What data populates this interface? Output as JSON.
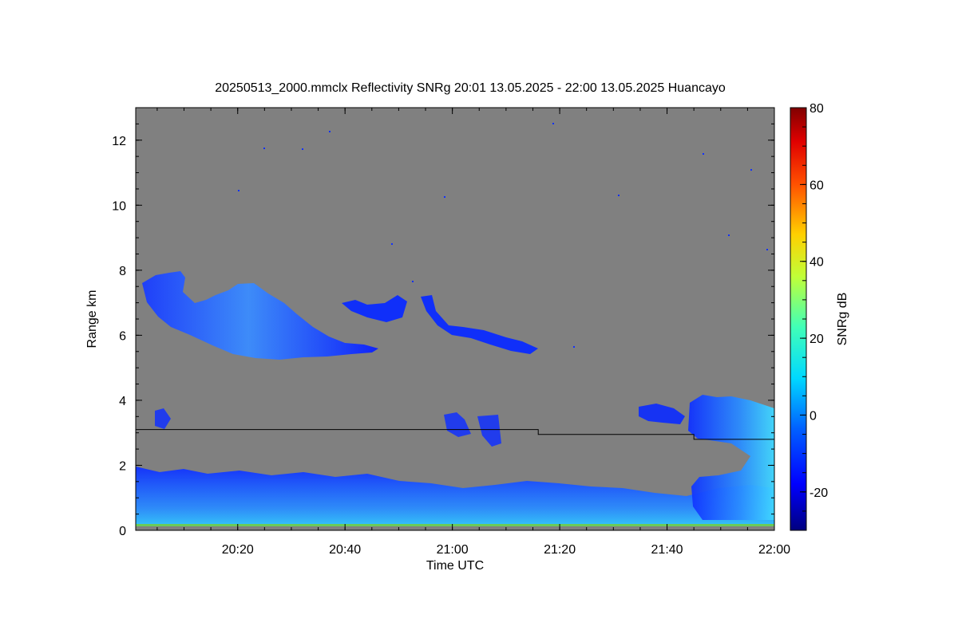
{
  "chart_data": {
    "type": "heatmap",
    "title": "20250513_2000.mmclx Reflectivity SNRg   20:01 13.05.2025 - 22:00 13.05.2025 Huancayo",
    "xlabel": "Time UTC",
    "ylabel": "Range km",
    "xlim": [
      "20:01",
      "22:00"
    ],
    "ylim": [
      0,
      13
    ],
    "x_ticks": [
      "20:20",
      "20:40",
      "21:00",
      "21:20",
      "21:40",
      "22:00"
    ],
    "y_ticks": [
      "0",
      "2",
      "4",
      "6",
      "8",
      "10",
      "12"
    ],
    "background_color": "#808080",
    "colorbar": {
      "label": "SNRg dB",
      "range": [
        -30,
        80
      ],
      "ticks": [
        "-20",
        "0",
        "20",
        "40",
        "60",
        "80"
      ],
      "colormap": "jet"
    },
    "reference_line": [
      {
        "from": "20:01",
        "to": "21:16",
        "range_km": 3.1
      },
      {
        "from": "21:16",
        "to": "21:45",
        "range_km": 2.95
      },
      {
        "from": "21:45",
        "to": "22:00",
        "range_km": 2.8
      }
    ],
    "echo_regions": [
      {
        "from": "20:01",
        "to": "20:47",
        "range_km": [
          5.2,
          8.0
        ],
        "snr_db": [
          -25,
          5
        ],
        "desc": "cirrus layer"
      },
      {
        "from": "20:40",
        "to": "21:17",
        "range_km": [
          5.4,
          7.3
        ],
        "snr_db": [
          -25,
          -5
        ],
        "desc": "thin layer"
      },
      {
        "from": "21:33",
        "to": "22:00",
        "range_km": [
          1.0,
          4.1
        ],
        "snr_db": [
          -20,
          15
        ],
        "desc": "convective echo"
      },
      {
        "from": "20:01",
        "to": "22:00",
        "range_km": [
          0.1,
          2.0
        ],
        "snr_db": [
          -25,
          5
        ],
        "desc": "boundary layer"
      },
      {
        "from": "20:01",
        "to": "22:00",
        "range_km": [
          0.05,
          0.15
        ],
        "snr_db": [
          15,
          25
        ],
        "desc": "surface band"
      }
    ]
  }
}
